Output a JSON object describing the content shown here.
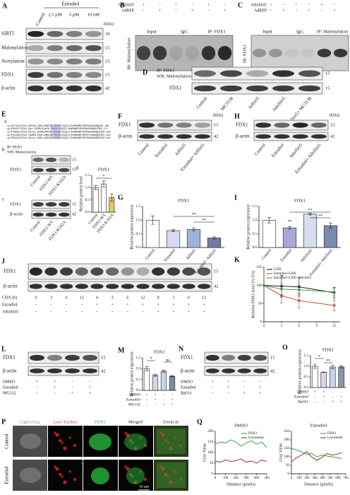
{
  "figure": {
    "A": {
      "letter": "A",
      "treatment": "Estradiol",
      "lanes": [
        "Control",
        "2.5 μM",
        "5 μM",
        "10 nM"
      ],
      "unit": "(kDa)",
      "rows": [
        "SIRT5",
        "Malonylation",
        "Acetylation",
        "FDX1",
        "β-actin"
      ],
      "kda": [
        "34",
        "15",
        "15",
        "15",
        "42"
      ]
    },
    "B": {
      "letter": "B",
      "rows": [
        {
          "name": "AdsiSirt5",
          "signs": [
            "+",
            "-",
            "+",
            "-",
            "+",
            "-"
          ]
        },
        {
          "name": "AdRFP",
          "signs": [
            "-",
            "+",
            "-",
            "+",
            "-",
            "+"
          ]
        }
      ],
      "lanes": [
        "Input",
        "IgG",
        "IP: FDX1"
      ],
      "ib": "IB: Malonylation"
    },
    "C": {
      "letter": "C",
      "rows": [
        {
          "name": "AdsiSirt5",
          "signs": [
            "+",
            "-",
            "+",
            "-",
            "+",
            "-"
          ]
        },
        {
          "name": "AdRFP",
          "signs": [
            "-",
            "+",
            "-",
            "+",
            "-",
            "+"
          ]
        }
      ],
      "lanes": [
        "Input",
        "IgG",
        "IP: Malonylation"
      ],
      "ib": "IB: FDX1"
    },
    "D": {
      "letter": "D",
      "ip": "IP: FDX1",
      "wb": "WB: Malonylation",
      "row2": "FDX1",
      "kda": [
        "15",
        "15"
      ],
      "lanes": [
        "Control",
        "MC3138",
        "AdSirt5",
        "AdsiSirt5",
        "AdsiSirt5+ MC3138"
      ]
    },
    "E": {
      "letter": "E",
      "a": "a",
      "b": "b",
      "c": "c",
      "d": "d",
      "alignment": [
        "sp|P37199|FDX1_BOVIN  EDDLLDMAYGLTDRSRLGCQICLTKSMDNMTVRVPEAVADVRQSVD  186",
        "sp|P00257|FDX1_Rat    EDDMLDLAYGLTNRSRLGCQICLTKAMDNMTVRVPDAVSDARESIDM  172",
        "sp|P46656|FDX1_Mouse  EDDMLDMAYGLTDRSRLGCQICLTKAMDNMTVRVPDAVSDARESIDM  188",
        "sp|P10109|FDX1_HUMAN  EDDLLDMAYGLTDRSRLGCQICLTKSMDNMTVRVPETVADARQSIDV  184",
        "sp|P00258|FDX1_Bovin  EDDLLDMAYGLTDRSRLGCQICLTKAMDNMTVRVPDAVSDARESIDM  186"
      ],
      "b_ip": "IP: FDX1",
      "b_wb": "WB: Malonylation",
      "b_row2": "FDX1",
      "b_kda": [
        "15",
        "15"
      ],
      "lanes": [
        "Control",
        "FDX1-WT",
        "FDX1-K162A"
      ],
      "c_rows": [
        "FDX1",
        "β-actin"
      ],
      "c_kda": [
        "15",
        "42"
      ]
    },
    "F": {
      "letter": "F",
      "unit": "(kDa)",
      "rows": [
        "FDX1",
        "β-actin"
      ],
      "kda": [
        "15",
        "42"
      ],
      "lanes": [
        "Control",
        "Estradiol",
        "AdSirt5",
        "Estradiol+ AdSirt5"
      ]
    },
    "G": {
      "letter": "G"
    },
    "H": {
      "letter": "H",
      "unit": "(kDa)",
      "rows": [
        "FDX1",
        "β-actin"
      ],
      "kda": [
        "15",
        "42"
      ],
      "lanes": [
        "Control",
        "Estradiol",
        "AdsiSirt5",
        "Estradiol+ AdsiSirt5"
      ]
    },
    "I": {
      "letter": "I"
    },
    "J": {
      "letter": "J",
      "rows": [
        "FDX1",
        "β-actin"
      ],
      "kda": [
        "15",
        "42"
      ],
      "treatments": [
        {
          "name": "CHX (h)",
          "signs": [
            "0",
            "3",
            "6",
            "12",
            "0",
            "3",
            "6",
            "12",
            "0",
            "3",
            "6",
            "12"
          ]
        },
        {
          "name": "Estradiol",
          "signs": [
            "-",
            "-",
            "-",
            "-",
            "+",
            "+",
            "+",
            "+",
            "+",
            "+",
            "+",
            "+"
          ]
        },
        {
          "name": "AdsiSirt5",
          "signs": [
            "-",
            "-",
            "-",
            "-",
            "-",
            "-",
            "-",
            "-",
            "+",
            "+",
            "+",
            "+"
          ]
        }
      ]
    },
    "K": {
      "letter": "K"
    },
    "L": {
      "letter": "L",
      "rows": [
        "FDX1",
        "β-actin"
      ],
      "kda": [
        "15",
        "42"
      ],
      "treatments": [
        {
          "name": "DMSO",
          "signs": [
            "+",
            "+",
            "-",
            "-"
          ]
        },
        {
          "name": "Estradiol",
          "signs": [
            "-",
            "+",
            "-",
            "+"
          ]
        },
        {
          "name": "MG132",
          "signs": [
            "-",
            "-",
            "+",
            "+"
          ]
        }
      ]
    },
    "M": {
      "letter": "M"
    },
    "N": {
      "letter": "N",
      "rows": [
        "FDX1",
        "β-actin"
      ],
      "kda": [
        "15",
        "42"
      ],
      "treatments": [
        {
          "name": "DMSO",
          "signs": [
            "+",
            "+",
            "-",
            "-"
          ]
        },
        {
          "name": "Estradiol",
          "signs": [
            "-",
            "+",
            "-",
            "+"
          ]
        },
        {
          "name": "BafA1",
          "signs": [
            "-",
            "-",
            "+",
            "+"
          ]
        }
      ]
    },
    "O": {
      "letter": "O"
    },
    "P": {
      "letter": "P",
      "columns": [
        "Lightening",
        "Lyso Tracker",
        "FDX1",
        "Merged",
        "Zoom in"
      ],
      "rows": [
        "Control",
        "Estradiol"
      ],
      "scale": "10 μm"
    },
    "Q": {
      "letter": "Q"
    }
  },
  "chart_data": [
    {
      "type": "bar",
      "title": "FDX1",
      "y_label": "Relative protein level",
      "categories": [
        "Control",
        "FDX1-WT",
        "FDX1-K162A"
      ],
      "values": [
        1.0,
        1.15,
        0.6
      ],
      "errors": [
        0.08,
        0.12,
        0.15
      ],
      "colors": [
        "#ffffff",
        "#ffffff",
        "#e6c75a"
      ],
      "ylim": [
        0,
        1.5
      ],
      "yticks": [
        {
          "value": 0,
          "label": "0.0"
        },
        {
          "value": 0.5,
          "label": "0.5"
        },
        {
          "value": 1,
          "label": "1.0"
        },
        {
          "value": 1.5,
          "label": "1.5"
        }
      ],
      "annotations": [
        "*"
      ]
    },
    {
      "type": "bar",
      "title": "FDX1",
      "y_label": "Relative protein expression",
      "categories": [
        "Control",
        "Estradiol",
        "AdSirt5",
        "Estradiol+ AdSirt5"
      ],
      "values": [
        1.0,
        0.62,
        0.66,
        0.35
      ],
      "errors": [
        0.15,
        0.04,
        0.05,
        0.04
      ],
      "colors": [
        "#ffffff",
        "#d9d9f2",
        "#9fb3d9",
        "#6f7fa0"
      ],
      "ylim": [
        0,
        1.5
      ],
      "yticks": [
        {
          "value": 0,
          "label": "0.0"
        },
        {
          "value": 0.5,
          "label": "0.5"
        },
        {
          "value": 1,
          "label": "1.0"
        },
        {
          "value": 1.5,
          "label": "1.5"
        }
      ],
      "annotations": [
        "**",
        "**"
      ]
    },
    {
      "type": "bar",
      "title": "FDX1",
      "y_label": "Relative protein expression",
      "categories": [
        "Control",
        "Estradiol",
        "AdsiSirt5",
        "Estradiol+ AdsiSirt5"
      ],
      "values": [
        1.0,
        0.72,
        1.22,
        0.8
      ],
      "errors": [
        0.1,
        0.05,
        0.03,
        0.1
      ],
      "colors": [
        "#ffffff",
        "#a8a8d8",
        "#d8dcef",
        "#7a8ab0"
      ],
      "ylim": [
        0,
        1.5
      ],
      "yticks": [
        {
          "value": 0,
          "label": "0.0"
        },
        {
          "value": 0.5,
          "label": "0.5"
        },
        {
          "value": 1,
          "label": "1.0"
        },
        {
          "value": 1.5,
          "label": "1.5"
        }
      ],
      "annotations": [
        "**",
        "**",
        "**"
      ]
    },
    {
      "type": "line",
      "y_label": "Relative FDX1 level (% 0 h)",
      "x": [
        0,
        3,
        6,
        12
      ],
      "xlim": [
        0,
        13
      ],
      "xticks": [
        0,
        3,
        6,
        9,
        12
      ],
      "ylim": [
        0,
        150
      ],
      "yticks": [
        0,
        50,
        100,
        150
      ],
      "markers": true,
      "legend": "upper left",
      "series": [
        {
          "name": "CHX",
          "color": "#000000",
          "values": [
            100,
            98,
            96,
            80
          ],
          "errors": [
            0,
            30,
            25,
            15
          ]
        },
        {
          "name": "Estradiol+CHX",
          "color": "#c0392b",
          "values": [
            100,
            72,
            58,
            45
          ],
          "errors": [
            0,
            20,
            20,
            15
          ]
        },
        {
          "name": "Estradiol+CHX+AdsiSirt5",
          "color": "#2e8b3a",
          "values": [
            100,
            90,
            88,
            82
          ],
          "errors": [
            0,
            15,
            12,
            10
          ]
        }
      ]
    },
    {
      "type": "bar",
      "title": "FDX1",
      "y_label": "Relative protein expression",
      "categories": [
        null,
        null,
        null,
        null
      ],
      "x_rows": [
        {
          "name": "DMSO",
          "signs": [
            "+",
            "+",
            "-",
            "-"
          ]
        },
        {
          "name": "Estradiol",
          "signs": [
            "-",
            "+",
            "-",
            "+"
          ]
        },
        {
          "name": "MG132",
          "signs": [
            "-",
            "-",
            "+",
            "+"
          ]
        }
      ],
      "values": [
        1.0,
        0.7,
        0.88,
        0.65
      ],
      "errors": [
        0.1,
        0.05,
        0.05,
        0.03
      ],
      "colors": [
        "#ffffff",
        "#d8d4ec",
        "#c8d4ec",
        "#7f8aa0"
      ],
      "ylim": [
        0,
        1.5
      ],
      "yticks": [
        {
          "value": 0,
          "label": "0.0"
        },
        {
          "value": 0.5,
          "label": "0.5"
        },
        {
          "value": 1,
          "label": "1.0"
        },
        {
          "value": 1.5,
          "label": "1.5"
        }
      ],
      "annotations": [
        "*",
        "ns"
      ]
    },
    {
      "type": "bar",
      "title": "FDX1",
      "y_label": "Relative protein expression",
      "categories": [
        null,
        null,
        null,
        null
      ],
      "x_rows": [
        {
          "name": "DMSO",
          "signs": [
            "+",
            "+",
            "-",
            "-"
          ]
        },
        {
          "name": "Estradiol",
          "signs": [
            "-",
            "+",
            "-",
            "+"
          ]
        },
        {
          "name": "BafA1",
          "signs": [
            "-",
            "-",
            "+",
            "+"
          ]
        }
      ],
      "values": [
        1.0,
        0.72,
        0.97,
        0.97
      ],
      "errors": [
        0.1,
        0.01,
        0.08,
        0.05
      ],
      "colors": [
        "#ffffff",
        "#d8d4ec",
        "#c8d4ec",
        "#8c96b0"
      ],
      "ylim": [
        0,
        1.5
      ],
      "yticks": [
        {
          "value": 0,
          "label": "0.0"
        },
        {
          "value": 0.5,
          "label": "0.5"
        },
        {
          "value": 1,
          "label": "1.0"
        },
        {
          "value": 1.5,
          "label": "1.5"
        }
      ],
      "annotations": [
        "*",
        "**"
      ]
    },
    {
      "type": "line",
      "title": "DMSO",
      "y_label": "Gray Value",
      "x_label": "Distance (pixels)",
      "legend": "upper right",
      "x": [
        0,
        50,
        100,
        150,
        200,
        250,
        300,
        350,
        400,
        450,
        500
      ],
      "xlim": [
        0,
        500
      ],
      "xticks": [
        0,
        100,
        200,
        300,
        400,
        500
      ],
      "ylim": [
        0,
        200
      ],
      "yticks": [
        0,
        50,
        100,
        150,
        200
      ],
      "series": [
        {
          "name": "FDX1",
          "color": "#1a9a3a",
          "values": [
            140,
            150,
            145,
            160,
            150,
            130,
            145,
            155,
            140,
            150,
            125
          ]
        },
        {
          "name": "Lysosomal",
          "color": "#8b1a1a",
          "values": [
            60,
            55,
            65,
            58,
            62,
            70,
            55,
            60,
            50,
            65,
            58
          ]
        }
      ]
    },
    {
      "type": "line",
      "title": "Estradiol",
      "y_label": "Gray Value",
      "x_label": "Distance (pixels)",
      "legend": "upper right",
      "x": [
        0,
        65,
        130,
        195,
        260,
        325,
        390,
        455,
        520,
        585,
        650
      ],
      "xlim": [
        0,
        700
      ],
      "xticks": [
        0,
        100,
        200,
        300,
        400,
        500,
        600,
        700
      ],
      "ylim": [
        0,
        250
      ],
      "yticks": [
        0,
        50,
        100,
        150,
        200,
        250
      ],
      "series": [
        {
          "name": "FDX1",
          "color": "#1a9a3a",
          "values": [
            150,
            140,
            130,
            115,
            120,
            100,
            110,
            105,
            100,
            95,
            90
          ]
        },
        {
          "name": "Lysosomal",
          "color": "#8b1a1a",
          "values": [
            70,
            95,
            110,
            130,
            100,
            80,
            95,
            120,
            110,
            115,
            125
          ]
        }
      ]
    }
  ]
}
